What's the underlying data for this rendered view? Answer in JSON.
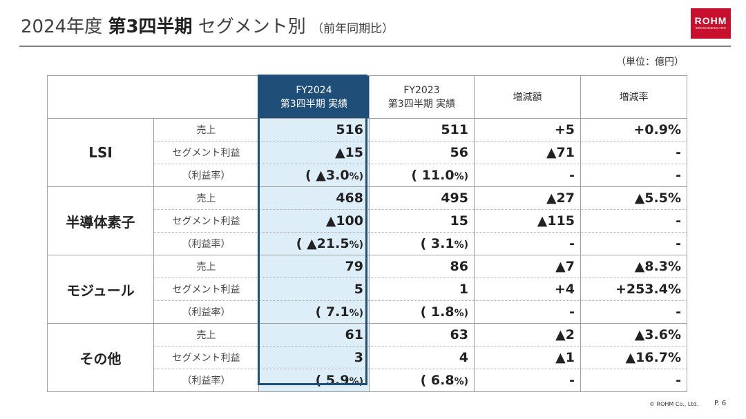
{
  "title": {
    "year": "2024年度",
    "quarter": "第3四半期",
    "segment": "セグメント別",
    "note": "（前年同期比）"
  },
  "logo": {
    "name": "ROHM",
    "sub": "SEMICONDUCTOR",
    "color": "#c8102e"
  },
  "unit": "（単位：億円）",
  "table": {
    "headers": {
      "fy2024_line1": "FY2024",
      "fy2024_line2": "第3四半期 実績",
      "fy2023_line1": "FY2023",
      "fy2023_line2": "第3四半期 実績",
      "change": "増減額",
      "rate": "増減率"
    },
    "row_labels": {
      "sales": "売上",
      "profit": "セグメント利益",
      "margin": "（利益率）"
    },
    "segments": [
      {
        "name": "LSI",
        "sales": {
          "fy2024": "516",
          "fy2023": "511",
          "change": "+5",
          "rate": "+0.9%"
        },
        "profit": {
          "fy2024": "▲15",
          "fy2023": "56",
          "change": "▲71",
          "rate": "-"
        },
        "margin": {
          "fy2024_open": "( ▲3.0",
          "fy2023_open": "( 11.0",
          "change": "-",
          "rate": "-"
        }
      },
      {
        "name": "半導体素子",
        "sales": {
          "fy2024": "468",
          "fy2023": "495",
          "change": "▲27",
          "rate": "▲5.5%"
        },
        "profit": {
          "fy2024": "▲100",
          "fy2023": "15",
          "change": "▲115",
          "rate": "-"
        },
        "margin": {
          "fy2024_open": "( ▲21.5",
          "fy2023_open": "( 3.1",
          "change": "-",
          "rate": "-"
        }
      },
      {
        "name": "モジュール",
        "sales": {
          "fy2024": "79",
          "fy2023": "86",
          "change": "▲7",
          "rate": "▲8.3%"
        },
        "profit": {
          "fy2024": "5",
          "fy2023": "1",
          "change": "+4",
          "rate": "+253.4%"
        },
        "margin": {
          "fy2024_open": "( 7.1",
          "fy2023_open": "( 1.8",
          "change": "-",
          "rate": "-"
        }
      },
      {
        "name": "その他",
        "sales": {
          "fy2024": "61",
          "fy2023": "63",
          "change": "▲2",
          "rate": "▲3.6%"
        },
        "profit": {
          "fy2024": "3",
          "fy2023": "4",
          "change": "▲1",
          "rate": "▲16.7%"
        },
        "margin": {
          "fy2024_open": "( 5.9",
          "fy2023_open": "( 6.8",
          "change": "-",
          "rate": "-"
        }
      }
    ],
    "margin_suffix": "%)"
  },
  "footer": {
    "copyright": "© ROHM Co., Ltd.",
    "page": "P. 6"
  },
  "colors": {
    "highlight_border": "#1f4e79",
    "highlight_fill": "#deeef9"
  }
}
